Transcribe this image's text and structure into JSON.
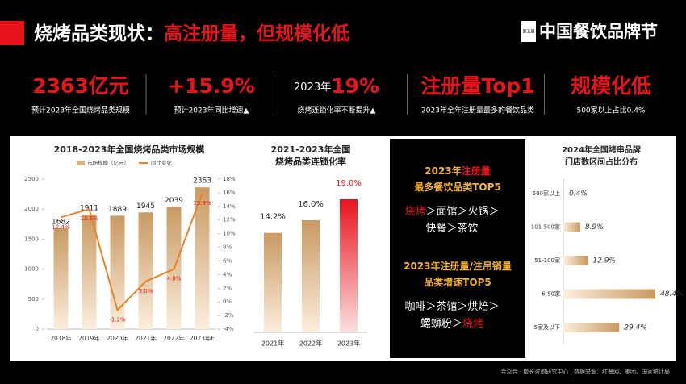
{
  "header": {
    "title_white": "烧烤品类现状：",
    "title_red": "高注册量，但规模化低",
    "logo_badge": "第五届",
    "logo": "中国餐饮品牌节"
  },
  "kpis": [
    {
      "big": "2363亿元",
      "sub": "预计2023年全国烧烤品类规模"
    },
    {
      "big": "+15.9%",
      "sub": "预计2023年同比增速▲"
    },
    {
      "prefix": "2023年",
      "big": "19%",
      "sub": "烧烤连锁化率不断提升▲"
    },
    {
      "big": "注册量Top1",
      "sub": "2023年全年注册量最多的餐饮品类"
    },
    {
      "big": "规模化低",
      "sub": "500家以上占比0.4%"
    }
  ],
  "rankings": {
    "separator": "＞",
    "blocks": [
      {
        "heading": [
          [
            {
              "text": "2023年",
              "color": "#f2b233"
            },
            {
              "text": "注册量",
              "color": "#e8141c"
            }
          ],
          [
            {
              "text": "最多餐饮品类TOP5",
              "color": "#f2b233"
            }
          ]
        ],
        "items": [
          {
            "text": "烧烤",
            "color": "#e8141c"
          },
          {
            "text": "面馆",
            "color": "#ffffff"
          },
          {
            "text": "火锅",
            "color": "#ffffff"
          },
          {
            "text": "快餐",
            "color": "#ffffff"
          },
          {
            "text": "茶饮",
            "color": "#ffffff"
          }
        ]
      },
      {
        "heading": [
          [
            {
              "text": "2023年注册量/注吊销量",
              "color": "#f2b233"
            }
          ],
          [
            {
              "text": "品类增速TOP5",
              "color": "#f2b233"
            }
          ]
        ],
        "items": [
          {
            "text": "咖啡",
            "color": "#ffffff"
          },
          {
            "text": "茶馆",
            "color": "#ffffff"
          },
          {
            "text": "烘焙",
            "color": "#ffffff"
          },
          {
            "text": "螺蛳粉",
            "color": "#ffffff"
          },
          {
            "text": "烧烤",
            "color": "#e8141c"
          }
        ]
      }
    ]
  },
  "footer": "合众合 · 增长咨询研究中心 | 数据来源：红餐网、美团、国家统计局",
  "chart_data": [
    {
      "type": "bar-line",
      "title": "2018-2023年全国烧烤品类市场规模",
      "categories": [
        "2018年",
        "2019年",
        "2020年",
        "2021年",
        "2022年",
        "2023年E"
      ],
      "series": [
        {
          "name": "市场规模（亿元）",
          "color": "#d9b27c",
          "values": [
            1682,
            1911,
            1889,
            1945,
            2039,
            2363
          ]
        },
        {
          "name": "同比变化",
          "color": "#e8832a",
          "axis": "y2",
          "values": [
            12.4,
            13.6,
            -1.2,
            3.0,
            4.8,
            15.9
          ],
          "value_labels": [
            "12.4%",
            "13.6%",
            "-1.2%",
            "3.0%",
            "4.8%",
            "15.9%"
          ],
          "label_color": "#e8141c"
        }
      ],
      "ylim": [
        0,
        2500
      ],
      "yticks": [
        0,
        500,
        1000,
        1500,
        2000,
        2500
      ],
      "y2lim": [
        -4,
        18
      ],
      "y2ticks": [
        {
          "value": -4,
          "label": "-4%"
        },
        {
          "value": -2,
          "label": "-2%"
        },
        {
          "value": 0,
          "label": "0%"
        },
        {
          "value": 2,
          "label": "2%"
        },
        {
          "value": 4,
          "label": "4%"
        },
        {
          "value": 6,
          "label": "6%"
        },
        {
          "value": 8,
          "label": "8%"
        },
        {
          "value": 10,
          "label": "10%"
        },
        {
          "value": 12,
          "label": "12%"
        },
        {
          "value": 14,
          "label": "14%"
        },
        {
          "value": 16,
          "label": "16%"
        },
        {
          "value": 18,
          "label": "18%"
        }
      ]
    },
    {
      "type": "bar",
      "title_lines": [
        "2021-2023年全国",
        "烧烤品类连锁化率"
      ],
      "categories": [
        "2021年",
        "2022年",
        "2023年"
      ],
      "values": [
        14.2,
        16.0,
        19.0
      ],
      "value_labels": [
        "14.2%",
        "16.0%",
        "19.0%"
      ],
      "colors": [
        "#d9b27c",
        "#d9b27c",
        "#e8141c"
      ],
      "label_colors": [
        "#333333",
        "#333333",
        "#e8141c"
      ]
    },
    {
      "type": "hbar",
      "title_lines": [
        "2024年全国烤串品牌",
        "门店数区间占比分布"
      ],
      "categories": [
        "500家以上",
        "101-500家",
        "51-100家",
        "6-50家",
        "5家及以下"
      ],
      "values": [
        0.4,
        8.9,
        12.9,
        48.4,
        29.4
      ],
      "value_labels": [
        "0.4%",
        "8.9%",
        "12.9%",
        "48.4%",
        "29.4%"
      ],
      "color": "#d9b27c"
    }
  ]
}
